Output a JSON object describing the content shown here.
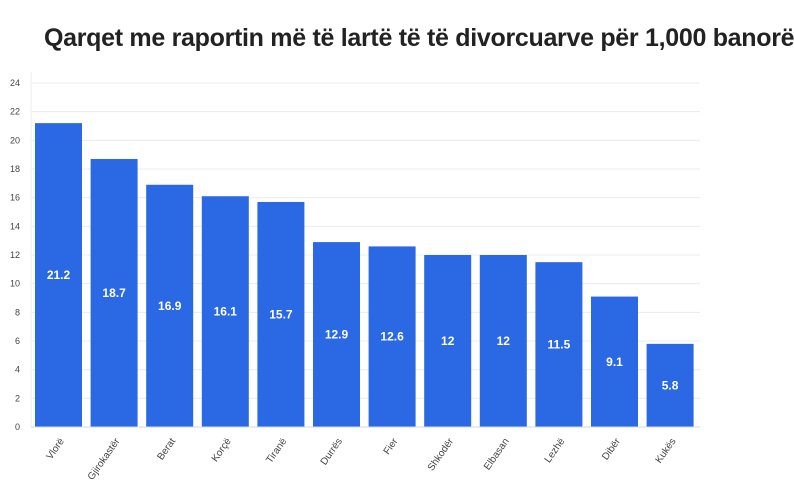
{
  "chart_data": {
    "type": "bar",
    "title": "Qarqet me raportin më të lartë të të divorcuarve për 1,000 banorë",
    "xlabel": "",
    "ylabel": "",
    "categories": [
      "Vlorë",
      "Gjirokastër",
      "Berat",
      "Korçë",
      "Tiranë",
      "Durrës",
      "Fier",
      "Shkodër",
      "Elbasan",
      "Lezhë",
      "Dibër",
      "Kukës"
    ],
    "values": [
      21.2,
      18.7,
      16.9,
      16.1,
      15.7,
      12.9,
      12.6,
      12,
      12,
      11.5,
      9.1,
      5.8
    ],
    "ylim": [
      0,
      24
    ],
    "yticks": [
      0,
      2,
      4,
      6,
      8,
      10,
      12,
      14,
      16,
      18,
      20,
      22,
      24
    ],
    "grid": true,
    "bar_color": "#2a69e3"
  }
}
